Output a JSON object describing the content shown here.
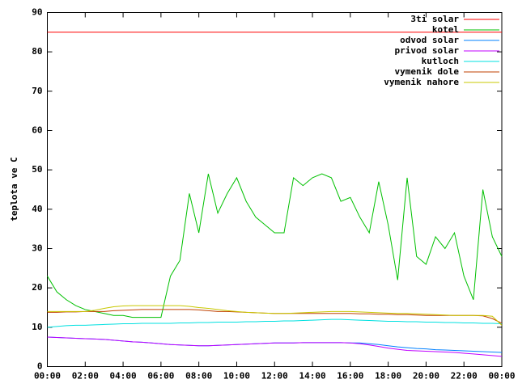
{
  "chart_data": {
    "type": "line",
    "ylabel": "teplota ve C",
    "x": [
      0,
      0.5,
      1,
      1.5,
      2,
      2.5,
      3,
      3.5,
      4,
      4.5,
      5,
      5.5,
      6,
      6.5,
      7,
      7.5,
      8,
      8.5,
      9,
      9.5,
      10,
      10.5,
      11,
      11.5,
      12,
      12.5,
      13,
      13.5,
      14,
      14.5,
      15,
      15.5,
      16,
      16.5,
      17,
      17.5,
      18,
      18.5,
      19,
      19.5,
      20,
      20.5,
      21,
      21.5,
      22,
      22.5,
      23,
      23.5,
      24
    ],
    "xlim": [
      0,
      24
    ],
    "xticks": [
      {
        "value": 0,
        "label": "00:00"
      },
      {
        "value": 2,
        "label": "02:00"
      },
      {
        "value": 4,
        "label": "04:00"
      },
      {
        "value": 6,
        "label": "06:00"
      },
      {
        "value": 8,
        "label": "08:00"
      },
      {
        "value": 10,
        "label": "10:00"
      },
      {
        "value": 12,
        "label": "12:00"
      },
      {
        "value": 14,
        "label": "14:00"
      },
      {
        "value": 16,
        "label": "16:00"
      },
      {
        "value": 18,
        "label": "18:00"
      },
      {
        "value": 20,
        "label": "20:00"
      },
      {
        "value": 22,
        "label": "22:00"
      },
      {
        "value": 24,
        "label": "00:00"
      }
    ],
    "ylim": [
      0,
      90
    ],
    "yticks": [
      0,
      10,
      20,
      30,
      40,
      50,
      60,
      70,
      80,
      90
    ],
    "grid": false,
    "legend": "top-right",
    "series": [
      {
        "name": "3ti solar",
        "color": "#ff0000",
        "values": [
          85,
          85,
          85,
          85,
          85,
          85,
          85,
          85,
          85,
          85,
          85,
          85,
          85,
          85,
          85,
          85,
          85,
          85,
          85,
          85,
          85,
          85,
          85,
          85,
          85,
          85,
          85,
          85,
          85,
          85,
          85,
          85,
          85,
          85,
          85,
          85,
          85,
          85,
          85,
          85,
          85,
          85,
          85,
          85,
          85,
          85,
          85,
          85,
          85
        ]
      },
      {
        "name": "kotel",
        "color": "#00c000",
        "values": [
          23,
          19,
          17,
          15.5,
          14.5,
          14,
          13.5,
          13,
          13,
          12.5,
          12.5,
          12.5,
          12.5,
          23,
          27,
          44,
          34,
          49,
          39,
          44,
          48,
          42,
          38,
          36,
          34,
          34,
          48,
          46,
          48,
          49,
          48,
          42,
          43,
          38,
          34,
          47,
          36,
          22,
          48,
          28,
          26,
          33,
          30,
          34,
          23,
          17,
          45,
          33,
          28
        ]
      },
      {
        "name": "odvod solar",
        "color": "#0080ff",
        "values": [
          7.5,
          7.4,
          7.3,
          7.2,
          7.1,
          7,
          6.9,
          6.7,
          6.5,
          6.3,
          6.2,
          6,
          5.8,
          5.6,
          5.5,
          5.4,
          5.3,
          5.3,
          5.4,
          5.5,
          5.6,
          5.7,
          5.8,
          5.9,
          6,
          6,
          6,
          6.1,
          6.1,
          6.1,
          6.1,
          6.1,
          6,
          6,
          5.8,
          5.6,
          5.3,
          5,
          4.8,
          4.6,
          4.5,
          4.3,
          4.2,
          4.1,
          4,
          3.9,
          3.8,
          3.7,
          3.6
        ]
      },
      {
        "name": "privod solar",
        "color": "#c000ff",
        "values": [
          7.5,
          7.4,
          7.3,
          7.2,
          7.1,
          7,
          6.9,
          6.7,
          6.5,
          6.3,
          6.2,
          6,
          5.8,
          5.6,
          5.5,
          5.4,
          5.3,
          5.3,
          5.4,
          5.5,
          5.6,
          5.7,
          5.8,
          5.9,
          6,
          6,
          6,
          6.1,
          6.1,
          6.1,
          6.1,
          6.1,
          6,
          5.8,
          5.5,
          5.1,
          4.7,
          4.4,
          4.1,
          4,
          3.9,
          3.8,
          3.7,
          3.6,
          3.4,
          3.2,
          3,
          2.8,
          2.6
        ]
      },
      {
        "name": "kutloch",
        "color": "#00e0e0",
        "values": [
          10,
          10.2,
          10.4,
          10.5,
          10.5,
          10.6,
          10.7,
          10.8,
          10.9,
          10.9,
          11,
          11,
          11,
          11,
          11.1,
          11.1,
          11.2,
          11.2,
          11.3,
          11.3,
          11.3,
          11.4,
          11.4,
          11.5,
          11.5,
          11.6,
          11.6,
          11.7,
          11.8,
          11.9,
          12,
          12,
          11.9,
          11.8,
          11.7,
          11.6,
          11.5,
          11.5,
          11.4,
          11.4,
          11.3,
          11.3,
          11.2,
          11.2,
          11.1,
          11.1,
          11,
          11,
          10.9
        ]
      },
      {
        "name": "vymenik dole",
        "color": "#c04000",
        "values": [
          13.8,
          13.8,
          13.9,
          13.9,
          14,
          14,
          14,
          14.2,
          14.3,
          14.4,
          14.5,
          14.5,
          14.5,
          14.5,
          14.5,
          14.5,
          14.4,
          14.2,
          14,
          14,
          13.9,
          13.8,
          13.7,
          13.6,
          13.5,
          13.5,
          13.5,
          13.5,
          13.5,
          13.5,
          13.5,
          13.5,
          13.5,
          13.4,
          13.4,
          13.3,
          13.3,
          13.2,
          13.2,
          13.1,
          13,
          13,
          13,
          13,
          13,
          13,
          12.9,
          12.2,
          11
        ]
      },
      {
        "name": "vymenik nahore",
        "color": "#c8c800",
        "values": [
          14,
          14,
          14,
          14,
          14,
          14.3,
          14.8,
          15.2,
          15.4,
          15.5,
          15.5,
          15.5,
          15.5,
          15.5,
          15.5,
          15.3,
          15,
          14.8,
          14.5,
          14.2,
          14,
          13.8,
          13.7,
          13.6,
          13.5,
          13.5,
          13.6,
          13.7,
          13.8,
          13.9,
          14,
          14,
          14,
          13.9,
          13.8,
          13.7,
          13.6,
          13.5,
          13.5,
          13.4,
          13.3,
          13.2,
          13.1,
          13,
          13,
          13,
          13,
          12.8,
          10.5
        ]
      }
    ]
  }
}
